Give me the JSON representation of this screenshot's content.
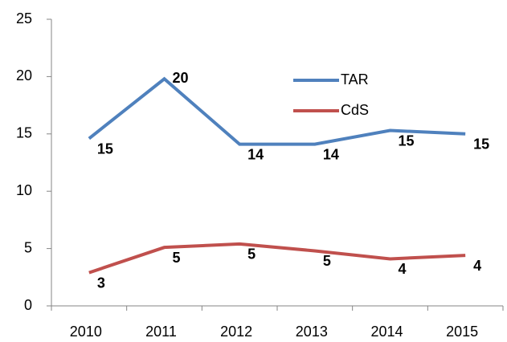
{
  "chart_data": {
    "type": "line",
    "categories": [
      "2010",
      "2011",
      "2012",
      "2013",
      "2014",
      "2015"
    ],
    "series": [
      {
        "name": "TAR",
        "color": "#4f81bd",
        "values": [
          14.6,
          19.8,
          14.1,
          14.1,
          15.3,
          15.0
        ],
        "value_labels": [
          "15",
          "20",
          "14",
          "14",
          "15",
          "15"
        ]
      },
      {
        "name": "CdS",
        "color": "#c0504d",
        "values": [
          2.9,
          5.1,
          5.4,
          4.8,
          4.1,
          4.4
        ],
        "value_labels": [
          "3",
          "5",
          "5",
          "5",
          "4",
          "4"
        ]
      }
    ],
    "ylim": [
      0,
      25
    ],
    "yticks": [
      0,
      5,
      10,
      15,
      20,
      25
    ],
    "grid": false,
    "legend": "top"
  }
}
